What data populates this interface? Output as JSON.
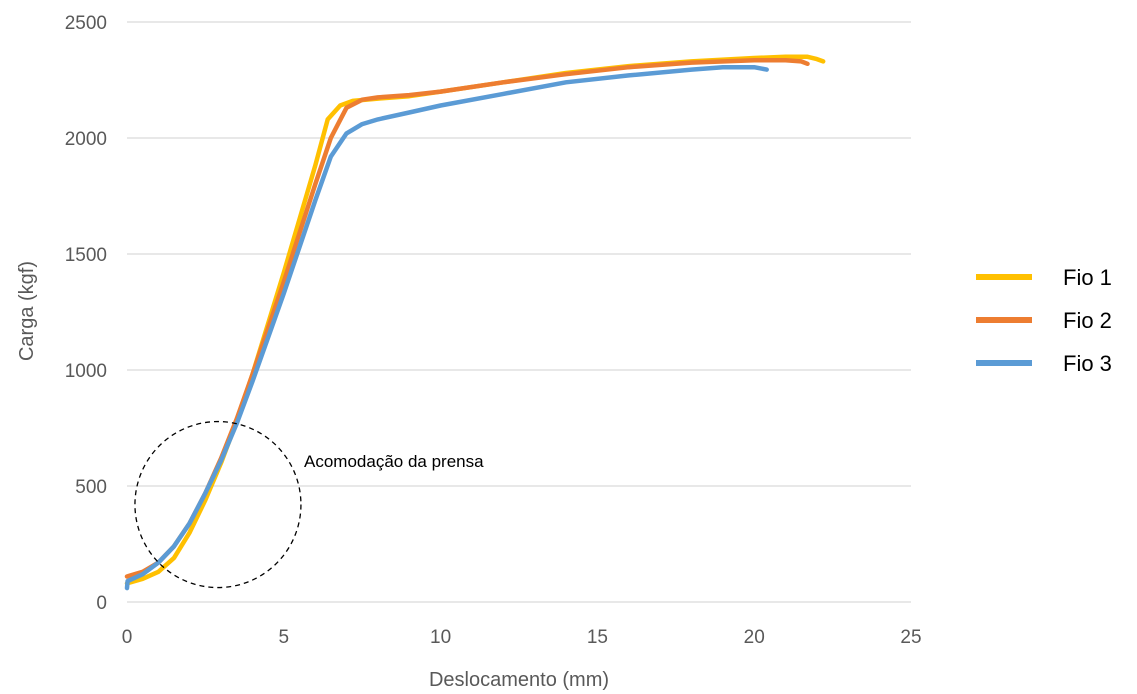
{
  "chart_data": {
    "type": "line",
    "title": "",
    "xlabel": "Deslocamento (mm)",
    "ylabel": "Carga (kgf)",
    "xlim": [
      0,
      25
    ],
    "ylim": [
      0,
      2500
    ],
    "x_ticks": [
      "0",
      "5",
      "10",
      "15",
      "20",
      "25"
    ],
    "y_ticks": [
      "0",
      "500",
      "1000",
      "1500",
      "2000",
      "2500"
    ],
    "grid": "horizontal",
    "legend_position": "right",
    "annotation": {
      "text": "Acomodação da prensa",
      "circle_center": [
        2.9,
        420
      ],
      "shape": "dashed-circle"
    },
    "series": [
      {
        "name": "Fio 1",
        "color": "#FFC000",
        "points": [
          [
            0,
            80
          ],
          [
            0.5,
            100
          ],
          [
            1.0,
            130
          ],
          [
            1.5,
            190
          ],
          [
            2.0,
            300
          ],
          [
            2.5,
            440
          ],
          [
            3.0,
            600
          ],
          [
            3.5,
            780
          ],
          [
            4.0,
            980
          ],
          [
            4.5,
            1200
          ],
          [
            5.0,
            1420
          ],
          [
            5.5,
            1650
          ],
          [
            6.0,
            1880
          ],
          [
            6.4,
            2080
          ],
          [
            6.8,
            2140
          ],
          [
            7.2,
            2160
          ],
          [
            8,
            2170
          ],
          [
            9,
            2180
          ],
          [
            10,
            2200
          ],
          [
            12,
            2240
          ],
          [
            14,
            2280
          ],
          [
            16,
            2310
          ],
          [
            18,
            2330
          ],
          [
            20,
            2345
          ],
          [
            21,
            2350
          ],
          [
            21.7,
            2350
          ],
          [
            22.0,
            2340
          ],
          [
            22.2,
            2330
          ]
        ]
      },
      {
        "name": "Fio 2",
        "color": "#ED7D31",
        "points": [
          [
            0,
            110
          ],
          [
            0.5,
            130
          ],
          [
            1.0,
            170
          ],
          [
            1.5,
            240
          ],
          [
            2.0,
            340
          ],
          [
            2.5,
            470
          ],
          [
            3.0,
            620
          ],
          [
            3.5,
            790
          ],
          [
            4.0,
            980
          ],
          [
            4.5,
            1180
          ],
          [
            5.0,
            1380
          ],
          [
            5.5,
            1590
          ],
          [
            6.0,
            1800
          ],
          [
            6.5,
            2000
          ],
          [
            7.0,
            2130
          ],
          [
            7.5,
            2165
          ],
          [
            8,
            2175
          ],
          [
            9,
            2185
          ],
          [
            10,
            2200
          ],
          [
            12,
            2240
          ],
          [
            14,
            2275
          ],
          [
            16,
            2305
          ],
          [
            18,
            2325
          ],
          [
            20,
            2335
          ],
          [
            21,
            2335
          ],
          [
            21.5,
            2330
          ],
          [
            21.7,
            2320
          ]
        ]
      },
      {
        "name": "Fio 3",
        "color": "#5B9BD5",
        "points": [
          [
            0,
            60
          ],
          [
            0.02,
            90
          ],
          [
            0.5,
            120
          ],
          [
            1.0,
            170
          ],
          [
            1.5,
            240
          ],
          [
            2.0,
            340
          ],
          [
            2.5,
            470
          ],
          [
            3.0,
            610
          ],
          [
            3.5,
            770
          ],
          [
            4.0,
            950
          ],
          [
            4.5,
            1140
          ],
          [
            5.0,
            1330
          ],
          [
            5.5,
            1530
          ],
          [
            6.0,
            1730
          ],
          [
            6.5,
            1920
          ],
          [
            7.0,
            2020
          ],
          [
            7.5,
            2060
          ],
          [
            8,
            2080
          ],
          [
            9,
            2110
          ],
          [
            10,
            2140
          ],
          [
            12,
            2190
          ],
          [
            14,
            2240
          ],
          [
            16,
            2270
          ],
          [
            18,
            2295
          ],
          [
            19,
            2305
          ],
          [
            20,
            2305
          ],
          [
            20.4,
            2295
          ]
        ]
      }
    ]
  }
}
